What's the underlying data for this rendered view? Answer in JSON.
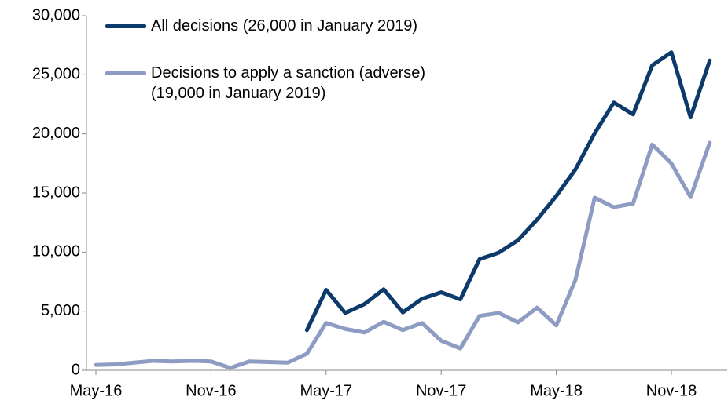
{
  "chart_data": {
    "type": "line",
    "categories": [
      "May-16",
      null,
      null,
      null,
      null,
      null,
      "Nov-16",
      null,
      null,
      null,
      null,
      null,
      "May-17",
      null,
      null,
      null,
      null,
      null,
      "Nov-17",
      null,
      null,
      null,
      null,
      null,
      "May-18",
      null,
      null,
      null,
      null,
      null,
      "Nov-18",
      null,
      null
    ],
    "series": [
      {
        "name": "All decisions (26,000 in January 2019)",
        "color": "#0b3a6b",
        "values": [
          null,
          null,
          null,
          null,
          null,
          null,
          null,
          null,
          null,
          null,
          null,
          3400,
          6800,
          4850,
          5600,
          6850,
          4900,
          6050,
          6600,
          6000,
          9400,
          9950,
          11000,
          12750,
          14750,
          17000,
          20050,
          22650,
          21650,
          25800,
          26900,
          21400,
          26200
        ]
      },
      {
        "name": "Decisions to apply a sanction (adverse) (19,000 in January 2019)",
        "color": "#8e9cc3",
        "values": [
          450,
          500,
          650,
          800,
          750,
          800,
          750,
          200,
          750,
          700,
          650,
          1400,
          4000,
          3500,
          3200,
          4100,
          3400,
          4000,
          2500,
          1850,
          4600,
          4850,
          4050,
          5300,
          3800,
          7650,
          14600,
          13800,
          14100,
          19100,
          17500,
          14650,
          19250
        ]
      }
    ],
    "ylim": [
      0,
      30000
    ],
    "yticks": [
      0,
      {
        "value": 5000,
        "label": "5,000"
      },
      {
        "value": 10000,
        "label": "10,000"
      },
      {
        "value": 15000,
        "label": "15,000"
      },
      {
        "value": 20000,
        "label": "20,000"
      },
      {
        "value": 25000,
        "label": "25,000"
      },
      {
        "value": 30000,
        "label": "30,000"
      }
    ],
    "legend": "upper-left",
    "grid": false
  }
}
